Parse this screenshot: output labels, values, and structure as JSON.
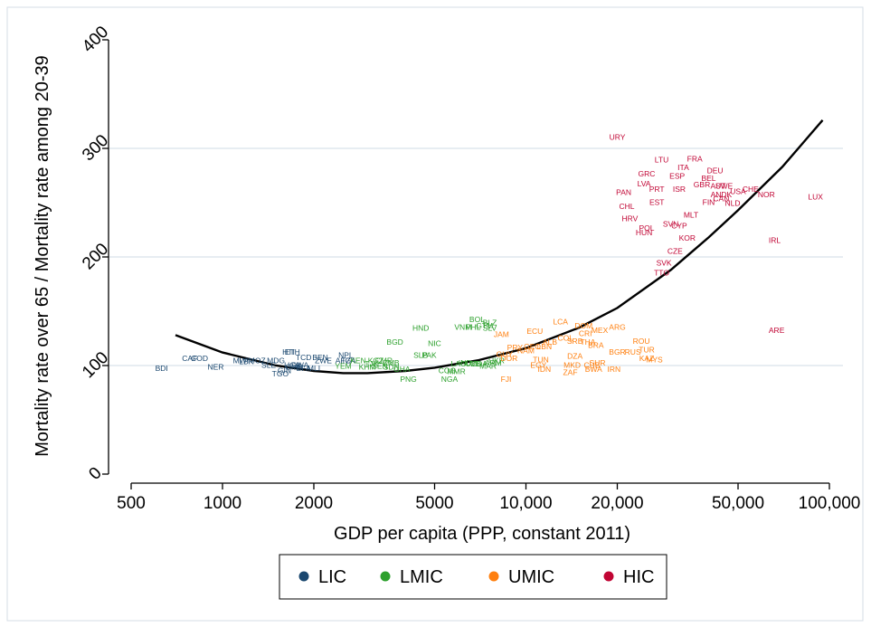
{
  "chart_data": {
    "type": "scatter",
    "title": "",
    "xlabel": "GDP per capita (PPP, constant 2011)",
    "ylabel": "Mortality rate over 65 / Mortality rate among 20-39",
    "x_scale": "log",
    "xlim": [
      500,
      100000
    ],
    "ylim": [
      0,
      400
    ],
    "x_ticks": [
      500,
      1000,
      2000,
      5000,
      10000,
      20000,
      50000,
      100000
    ],
    "x_tick_labels": [
      "500",
      "1000",
      "2000",
      "5000",
      "10,000",
      "20,000",
      "50,000",
      "100,000"
    ],
    "y_ticks": [
      0,
      100,
      200,
      300,
      400
    ],
    "y_tick_labels": [
      "0",
      "100",
      "200",
      "300",
      "400"
    ],
    "grid": "horizontal",
    "legend_position": "bottom",
    "series": [
      {
        "name": "LIC",
        "color": "#1a476f",
        "points": [
          {
            "label": "BDI",
            "x": 630,
            "y": 97
          },
          {
            "label": "CAF",
            "x": 780,
            "y": 106
          },
          {
            "label": "COD",
            "x": 840,
            "y": 106
          },
          {
            "label": "NER",
            "x": 950,
            "y": 98
          },
          {
            "label": "MWI",
            "x": 1150,
            "y": 104
          },
          {
            "label": "LBR",
            "x": 1200,
            "y": 103
          },
          {
            "label": "MOZ",
            "x": 1300,
            "y": 104
          },
          {
            "label": "SLE",
            "x": 1420,
            "y": 100
          },
          {
            "label": "MDG",
            "x": 1500,
            "y": 104
          },
          {
            "label": "HTI",
            "x": 1650,
            "y": 112
          },
          {
            "label": "ETH",
            "x": 1700,
            "y": 112
          },
          {
            "label": "TGO",
            "x": 1550,
            "y": 92
          },
          {
            "label": "GIN",
            "x": 1600,
            "y": 95
          },
          {
            "label": "UGA",
            "x": 1700,
            "y": 100
          },
          {
            "label": "RWA",
            "x": 1800,
            "y": 100
          },
          {
            "label": "GMB",
            "x": 1720,
            "y": 98
          },
          {
            "label": "TCD",
            "x": 1850,
            "y": 107
          },
          {
            "label": "BFA",
            "x": 1850,
            "y": 97
          },
          {
            "label": "MLI",
            "x": 2000,
            "y": 97
          },
          {
            "label": "BEN",
            "x": 2100,
            "y": 107
          },
          {
            "label": "ZWE",
            "x": 2150,
            "y": 104
          },
          {
            "label": "NPL",
            "x": 2550,
            "y": 109
          },
          {
            "label": "AFG",
            "x": 2500,
            "y": 104
          },
          {
            "label": "TZA",
            "x": 2600,
            "y": 104
          }
        ]
      },
      {
        "name": "LMIC",
        "color": "#2ca02c",
        "points": [
          {
            "label": "YEM",
            "x": 2500,
            "y": 99
          },
          {
            "label": "KEN",
            "x": 2800,
            "y": 104
          },
          {
            "label": "TJK",
            "x": 3100,
            "y": 101
          },
          {
            "label": "KHM",
            "x": 3000,
            "y": 98
          },
          {
            "label": "SEN",
            "x": 3300,
            "y": 99
          },
          {
            "label": "CMR",
            "x": 3400,
            "y": 104
          },
          {
            "label": "ZMB",
            "x": 3600,
            "y": 102
          },
          {
            "label": "KGZ",
            "x": 3200,
            "y": 104
          },
          {
            "label": "SDN",
            "x": 3600,
            "y": 98
          },
          {
            "label": "GHA",
            "x": 3900,
            "y": 96
          },
          {
            "label": "BGD",
            "x": 3700,
            "y": 121
          },
          {
            "label": "HND",
            "x": 4500,
            "y": 134
          },
          {
            "label": "NIC",
            "x": 5000,
            "y": 120
          },
          {
            "label": "SLB",
            "x": 4500,
            "y": 109
          },
          {
            "label": "PAK",
            "x": 4800,
            "y": 109
          },
          {
            "label": "PNG",
            "x": 4100,
            "y": 87
          },
          {
            "label": "NGA",
            "x": 5600,
            "y": 87
          },
          {
            "label": "COG",
            "x": 5500,
            "y": 95
          },
          {
            "label": "MMR",
            "x": 5900,
            "y": 94
          },
          {
            "label": "LAO",
            "x": 6000,
            "y": 101
          },
          {
            "label": "IND",
            "x": 6300,
            "y": 102
          },
          {
            "label": "UZB",
            "x": 6700,
            "y": 101
          },
          {
            "label": "VNM",
            "x": 6200,
            "y": 135
          },
          {
            "label": "PHL",
            "x": 6700,
            "y": 135
          },
          {
            "label": "BOL",
            "x": 6900,
            "y": 142
          },
          {
            "label": "GTM",
            "x": 7300,
            "y": 136
          },
          {
            "label": "SLV",
            "x": 7600,
            "y": 134
          },
          {
            "label": "BLZ",
            "x": 7600,
            "y": 139
          },
          {
            "label": "MAR",
            "x": 7500,
            "y": 99
          },
          {
            "label": "MDA",
            "x": 7000,
            "y": 101
          },
          {
            "label": "UKR",
            "x": 8000,
            "y": 104
          },
          {
            "label": "ARM",
            "x": 7800,
            "y": 102
          }
        ]
      },
      {
        "name": "UMIC",
        "color": "#ff7f0e",
        "points": [
          {
            "label": "JAM",
            "x": 8300,
            "y": 128
          },
          {
            "label": "GUY",
            "x": 8500,
            "y": 110
          },
          {
            "label": "DOR",
            "x": 8800,
            "y": 106
          },
          {
            "label": "FJI",
            "x": 8600,
            "y": 87
          },
          {
            "label": "ECU",
            "x": 10700,
            "y": 131
          },
          {
            "label": "PRY",
            "x": 9200,
            "y": 116
          },
          {
            "label": "NAM",
            "x": 10000,
            "y": 113
          },
          {
            "label": "GEO",
            "x": 10500,
            "y": 117
          },
          {
            "label": "LBN",
            "x": 11500,
            "y": 117
          },
          {
            "label": "ALB",
            "x": 12000,
            "y": 121
          },
          {
            "label": "TUN",
            "x": 11200,
            "y": 105
          },
          {
            "label": "EGY",
            "x": 11000,
            "y": 100
          },
          {
            "label": "IDN",
            "x": 11500,
            "y": 96
          },
          {
            "label": "LCA",
            "x": 13000,
            "y": 140
          },
          {
            "label": "COL",
            "x": 13500,
            "y": 125
          },
          {
            "label": "SRB",
            "x": 14500,
            "y": 122
          },
          {
            "label": "DZA",
            "x": 14500,
            "y": 108
          },
          {
            "label": "MKD",
            "x": 14200,
            "y": 100
          },
          {
            "label": "ZAF",
            "x": 14000,
            "y": 93
          },
          {
            "label": "DOM",
            "x": 15500,
            "y": 136
          },
          {
            "label": "CRI",
            "x": 15700,
            "y": 129
          },
          {
            "label": "THA",
            "x": 16000,
            "y": 121
          },
          {
            "label": "MEX",
            "x": 17500,
            "y": 132
          },
          {
            "label": "BRA",
            "x": 17000,
            "y": 118
          },
          {
            "label": "CUB",
            "x": 16500,
            "y": 100
          },
          {
            "label": "SUR",
            "x": 17200,
            "y": 102
          },
          {
            "label": "BWA",
            "x": 16700,
            "y": 96
          },
          {
            "label": "ARG",
            "x": 20000,
            "y": 135
          },
          {
            "label": "IRN",
            "x": 19500,
            "y": 96
          },
          {
            "label": "BGR",
            "x": 20000,
            "y": 112
          },
          {
            "label": "RUS",
            "x": 22500,
            "y": 112
          },
          {
            "label": "ROU",
            "x": 24000,
            "y": 122
          },
          {
            "label": "TUR",
            "x": 25000,
            "y": 114
          },
          {
            "label": "KAZ",
            "x": 25000,
            "y": 106
          },
          {
            "label": "MYS",
            "x": 26500,
            "y": 105
          }
        ]
      },
      {
        "name": "HIC",
        "color": "#c10534",
        "points": [
          {
            "label": "URY",
            "x": 20000,
            "y": 310
          },
          {
            "label": "LTU",
            "x": 28000,
            "y": 289
          },
          {
            "label": "FRA",
            "x": 36000,
            "y": 290
          },
          {
            "label": "ITA",
            "x": 33000,
            "y": 282
          },
          {
            "label": "ESP",
            "x": 31500,
            "y": 274
          },
          {
            "label": "GRC",
            "x": 25000,
            "y": 276
          },
          {
            "label": "DEU",
            "x": 42000,
            "y": 279
          },
          {
            "label": "BEL",
            "x": 40000,
            "y": 272
          },
          {
            "label": "LVA",
            "x": 24500,
            "y": 267
          },
          {
            "label": "GBR",
            "x": 38000,
            "y": 266
          },
          {
            "label": "AUT",
            "x": 43000,
            "y": 265
          },
          {
            "label": "SWE",
            "x": 45000,
            "y": 265
          },
          {
            "label": "ISR",
            "x": 32000,
            "y": 262
          },
          {
            "label": "PRT",
            "x": 27000,
            "y": 262
          },
          {
            "label": "PAN",
            "x": 21000,
            "y": 259
          },
          {
            "label": "USA",
            "x": 50000,
            "y": 260
          },
          {
            "label": "CHE",
            "x": 55000,
            "y": 262
          },
          {
            "label": "NOR",
            "x": 62000,
            "y": 257
          },
          {
            "label": "LUX",
            "x": 90000,
            "y": 255
          },
          {
            "label": "ANDK",
            "x": 44000,
            "y": 257
          },
          {
            "label": "FIN",
            "x": 40000,
            "y": 250
          },
          {
            "label": "CAN",
            "x": 44000,
            "y": 253
          },
          {
            "label": "NLD",
            "x": 48000,
            "y": 249
          },
          {
            "label": "EST",
            "x": 27000,
            "y": 250
          },
          {
            "label": "CHL",
            "x": 21500,
            "y": 246
          },
          {
            "label": "MLT",
            "x": 35000,
            "y": 238
          },
          {
            "label": "HRV",
            "x": 22000,
            "y": 235
          },
          {
            "label": "SVN",
            "x": 30000,
            "y": 230
          },
          {
            "label": "CYP",
            "x": 32000,
            "y": 228
          },
          {
            "label": "POL",
            "x": 25000,
            "y": 226
          },
          {
            "label": "HUN",
            "x": 24500,
            "y": 222
          },
          {
            "label": "KOR",
            "x": 34000,
            "y": 217
          },
          {
            "label": "IRL",
            "x": 66000,
            "y": 215
          },
          {
            "label": "CZE",
            "x": 31000,
            "y": 205
          },
          {
            "label": "SVK",
            "x": 28500,
            "y": 194
          },
          {
            "label": "TTO",
            "x": 28000,
            "y": 185
          },
          {
            "label": "ARE",
            "x": 67000,
            "y": 132
          }
        ]
      }
    ],
    "fit_line": {
      "color": "#000000",
      "points": [
        {
          "x": 700,
          "y": 128
        },
        {
          "x": 1000,
          "y": 112
        },
        {
          "x": 1500,
          "y": 100
        },
        {
          "x": 2000,
          "y": 95
        },
        {
          "x": 2500,
          "y": 93
        },
        {
          "x": 3000,
          "y": 93
        },
        {
          "x": 4000,
          "y": 95
        },
        {
          "x": 5000,
          "y": 98
        },
        {
          "x": 7000,
          "y": 105
        },
        {
          "x": 10000,
          "y": 116
        },
        {
          "x": 15000,
          "y": 135
        },
        {
          "x": 20000,
          "y": 153
        },
        {
          "x": 30000,
          "y": 188
        },
        {
          "x": 40000,
          "y": 218
        },
        {
          "x": 50000,
          "y": 243
        },
        {
          "x": 70000,
          "y": 283
        },
        {
          "x": 95000,
          "y": 326
        }
      ]
    }
  }
}
